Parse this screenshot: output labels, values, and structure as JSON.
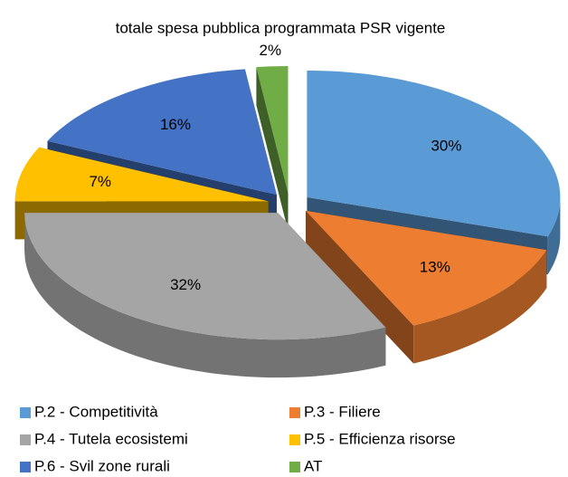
{
  "chart_data": {
    "type": "pie3d",
    "title": "totale spesa pubblica programmata PSR vigente",
    "categories": [
      "P.2 - Competitività",
      "P.3 - Filiere",
      "P.4 - Tutela ecosistemi",
      "P.5 - Efficienza risorse",
      "P.6 - Svil zone rurali",
      "AT"
    ],
    "values": [
      30,
      13,
      32,
      7,
      16,
      2
    ],
    "value_labels": [
      "30%",
      "13%",
      "32%",
      "7%",
      "16%",
      "2%"
    ],
    "colors": [
      "#5b9bd5",
      "#ed7d31",
      "#a5a5a5",
      "#ffc000",
      "#4472c4",
      "#70ad47"
    ],
    "legend": "bottom"
  }
}
